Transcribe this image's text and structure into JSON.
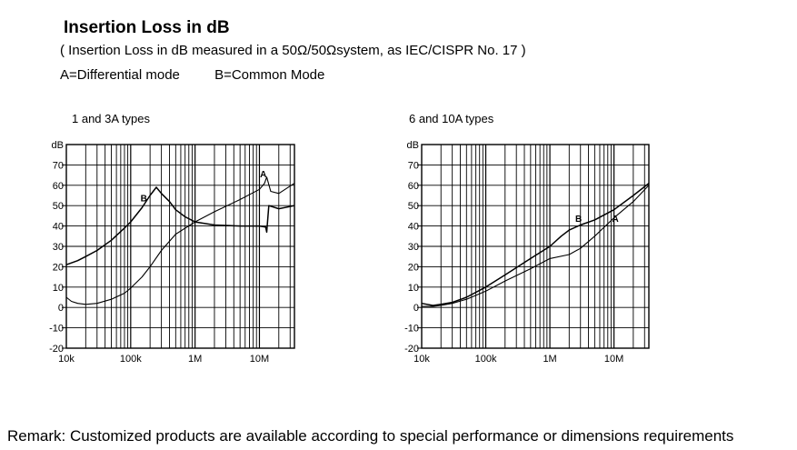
{
  "header": {
    "title": "Insertion Loss in dB",
    "subtitle": "( Insertion Loss in dB measured in a 50Ω/50Ωsystem, as IEC/CISPR No. 17 )",
    "mode_a": "A=Differential mode",
    "mode_b": "B=Common Mode"
  },
  "remark": "Remark: Customized products are available according to special performance or dimensions requirements",
  "chart_data": [
    {
      "type": "line",
      "title": "1 and 3A types",
      "ylabel": "dB",
      "xlabel": "",
      "x_scale": "log",
      "xlim": [
        10000,
        35000000
      ],
      "ylim": [
        -20,
        80
      ],
      "yticks": [
        70,
        60,
        50,
        40,
        30,
        20,
        10,
        0,
        -10,
        -20
      ],
      "xtick_labels": [
        {
          "value": 10000,
          "label": "10k"
        },
        {
          "value": 100000,
          "label": "100k"
        },
        {
          "value": 1000000,
          "label": "1M"
        },
        {
          "value": 10000000,
          "label": "10M"
        }
      ],
      "grid": true,
      "series": [
        {
          "name": "A",
          "x": [
            10000,
            12000,
            15000,
            20000,
            30000,
            50000,
            80000,
            100000,
            150000,
            200000,
            300000,
            500000,
            1000000,
            2000000,
            5000000,
            10000000,
            12000000,
            13000000,
            15000000,
            20000000,
            35000000
          ],
          "y": [
            5,
            3,
            2,
            1.5,
            2,
            4,
            7,
            9.5,
            15,
            20,
            28,
            36,
            42,
            47,
            53,
            58,
            61,
            64,
            57,
            56,
            61
          ]
        },
        {
          "name": "B",
          "x": [
            10000,
            15000,
            20000,
            30000,
            50000,
            80000,
            100000,
            150000,
            200000,
            250000,
            300000,
            400000,
            500000,
            700000,
            1000000,
            2000000,
            5000000,
            10000000,
            12500000,
            13000000,
            14000000,
            20000000,
            35000000
          ],
          "y": [
            21,
            23,
            25,
            28,
            33,
            39,
            42,
            49,
            55,
            59,
            56,
            52,
            48,
            44.5,
            42,
            40.5,
            40,
            40,
            39.5,
            37,
            50,
            48.5,
            50
          ]
        }
      ],
      "annotations": [
        {
          "text": "A",
          "x": 11500000,
          "y": 64
        },
        {
          "text": "B",
          "x": 160000,
          "y": 52
        }
      ]
    },
    {
      "type": "line",
      "title": "6 and 10A types",
      "ylabel": "dB",
      "xlabel": "",
      "x_scale": "log",
      "xlim": [
        10000,
        35000000
      ],
      "ylim": [
        -20,
        80
      ],
      "yticks": [
        70,
        60,
        50,
        40,
        30,
        20,
        10,
        0,
        -10,
        -20
      ],
      "xtick_labels": [
        {
          "value": 10000,
          "label": "10k"
        },
        {
          "value": 100000,
          "label": "100k"
        },
        {
          "value": 1000000,
          "label": "1M"
        },
        {
          "value": 10000000,
          "label": "10M"
        }
      ],
      "grid": true,
      "series": [
        {
          "name": "A",
          "x": [
            10000,
            15000,
            20000,
            30000,
            50000,
            100000,
            200000,
            500000,
            1000000,
            2000000,
            3000000,
            5000000,
            10000000,
            20000000,
            35000000
          ],
          "y": [
            0.5,
            0.5,
            1,
            2,
            4,
            8,
            13,
            19,
            24,
            26,
            29,
            35,
            44,
            52,
            60
          ]
        },
        {
          "name": "B",
          "x": [
            10000,
            15000,
            20000,
            30000,
            50000,
            100000,
            200000,
            500000,
            1000000,
            1500000,
            2000000,
            3000000,
            5000000,
            10000000,
            20000000,
            35000000
          ],
          "y": [
            2,
            1,
            1.5,
            2.5,
            5,
            10,
            16,
            24,
            30,
            35,
            38,
            40.5,
            43,
            48,
            55,
            61
          ]
        }
      ],
      "annotations": [
        {
          "text": "B",
          "x": 2800000,
          "y": 42
        },
        {
          "text": "A",
          "x": 10500000,
          "y": 42
        }
      ]
    }
  ]
}
